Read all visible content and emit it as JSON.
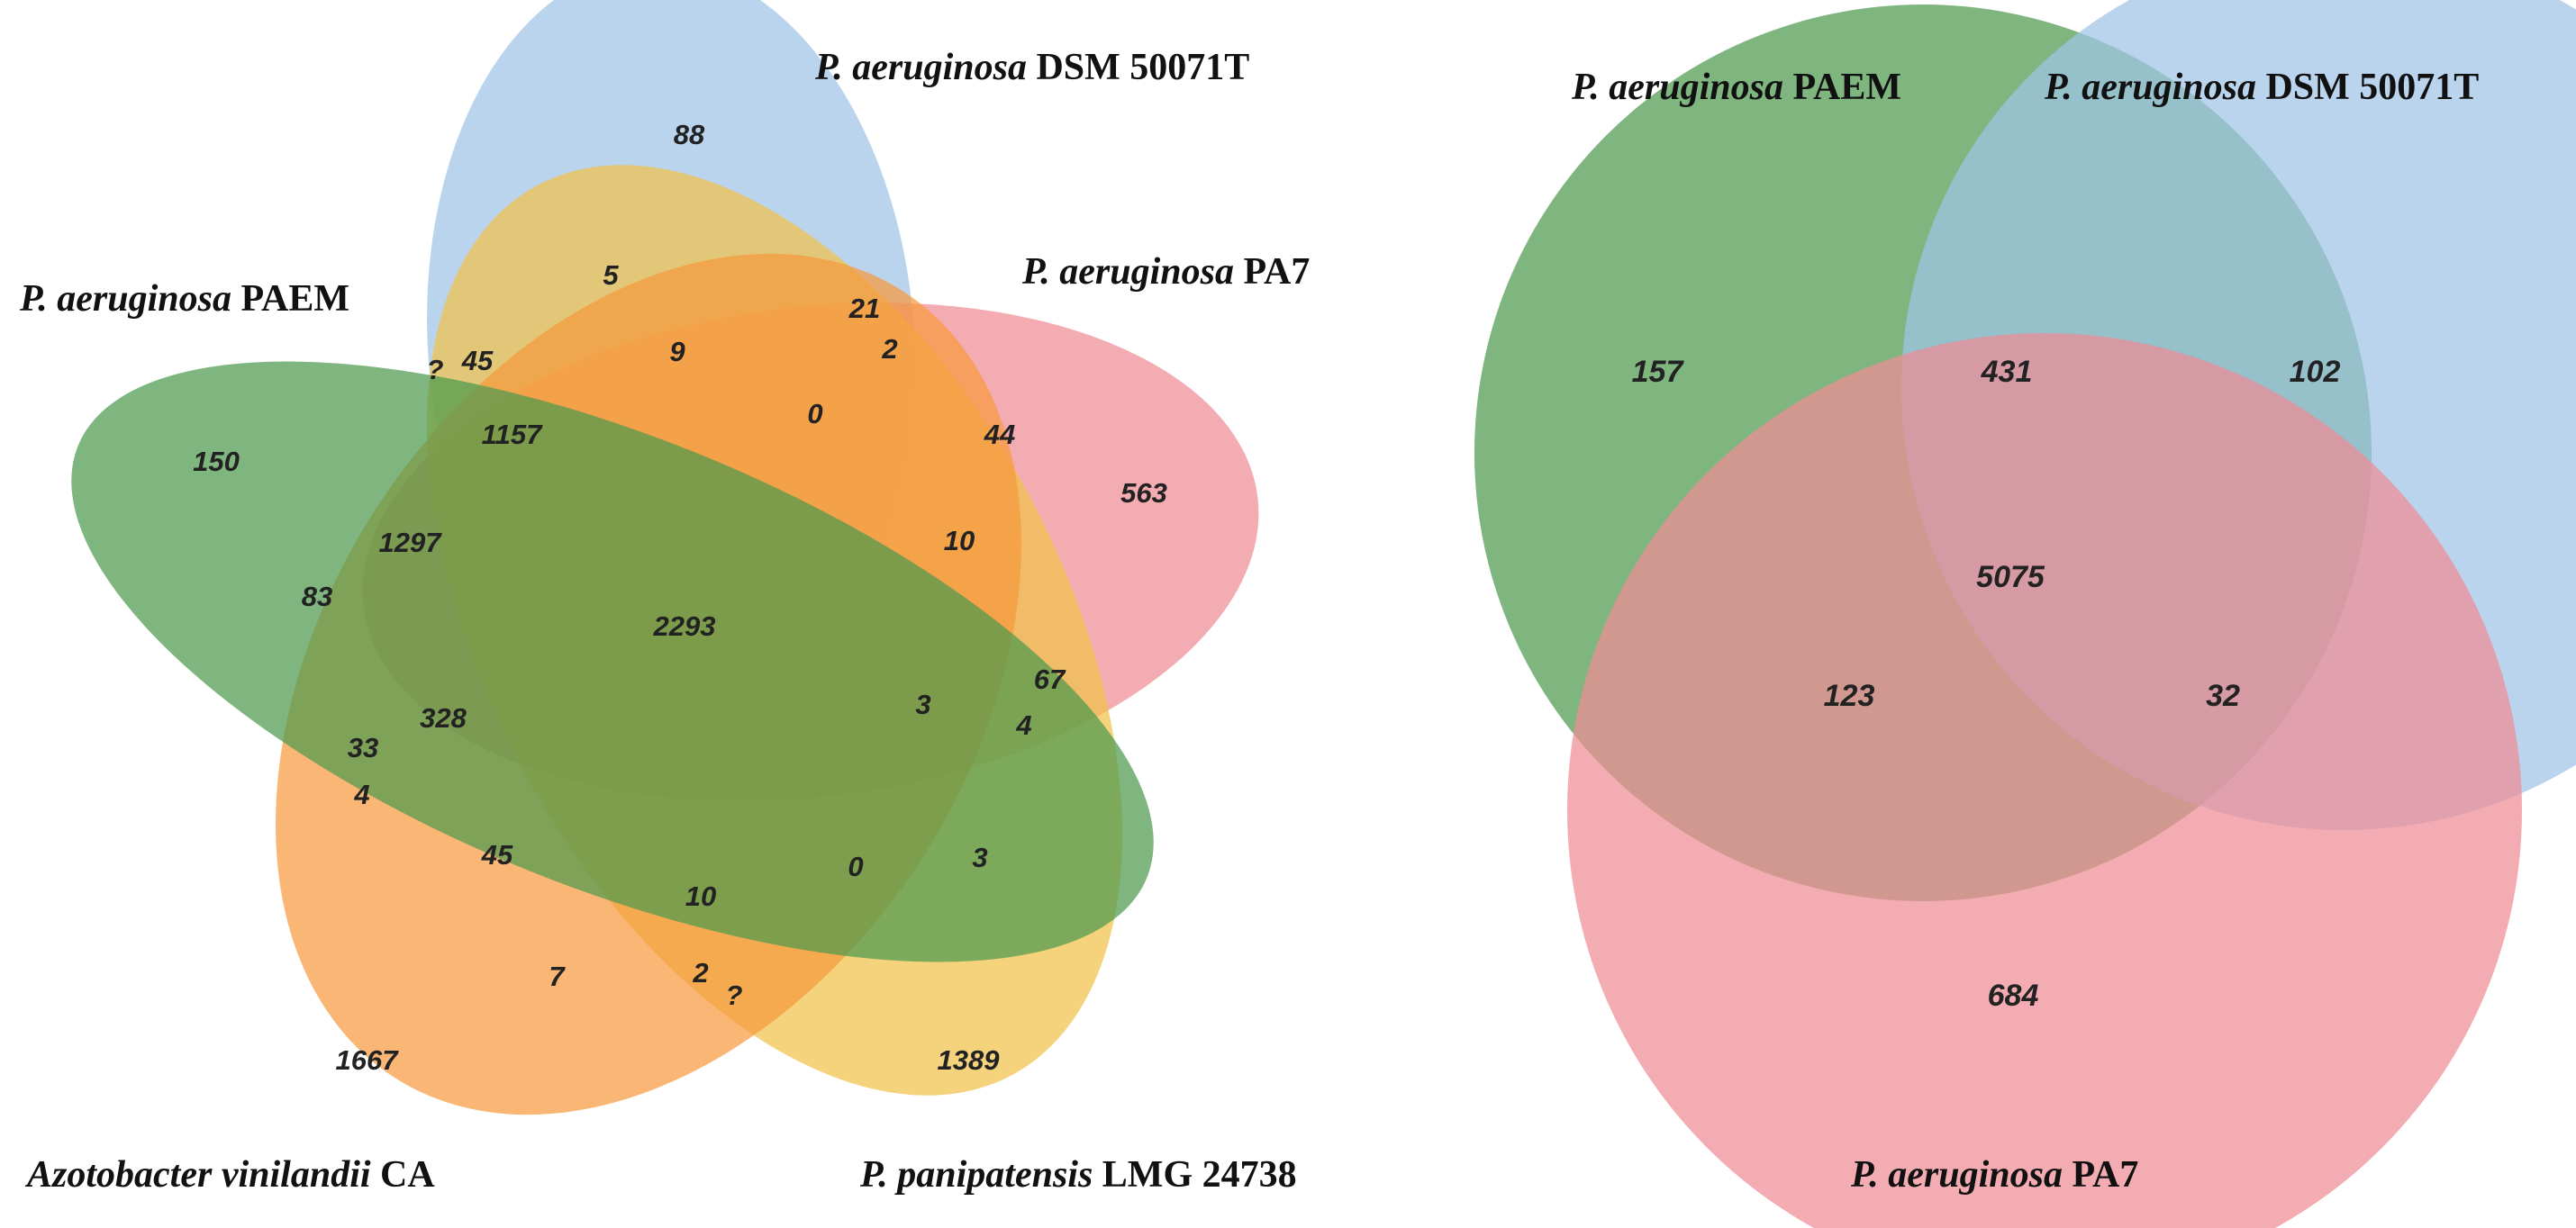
{
  "five_set_venn": {
    "sets": [
      {
        "key": "dsm",
        "species": "P. aeruginosa",
        "strain": "DSM 50071T",
        "color": "#9fc4e8"
      },
      {
        "key": "pa7",
        "species": "P. aeruginosa",
        "strain": "PA7",
        "color": "#f08c96"
      },
      {
        "key": "pan",
        "species": "P. panipatensis",
        "strain": "LMG 24738",
        "color": "#f0c24a"
      },
      {
        "key": "azo",
        "species": "Azotobacter vinilandii",
        "strain": "CA",
        "color": "#f79a3e"
      },
      {
        "key": "paem",
        "species": "P. aeruginosa",
        "strain": "PAEM",
        "color": "#4e9a4e"
      }
    ],
    "counts": {
      "r1": "88",
      "r2": "5",
      "r3": "21",
      "r4": "2",
      "r5": "9",
      "r6": "45",
      "r7": "?",
      "r8": "0",
      "r9": "44",
      "r10": "563",
      "r11": "1157",
      "r12": "150",
      "r13": "10",
      "r14": "1297",
      "r15": "83",
      "r16": "2293",
      "r17": "67",
      "r18": "3",
      "r19": "4",
      "r20": "328",
      "r21": "33",
      "r22": "4",
      "r23": "45",
      "r24": "10",
      "r25": "0",
      "r26": "3",
      "r27": "7",
      "r28": "2",
      "r29": "?",
      "r30": "1667",
      "r31": "1389"
    }
  },
  "three_set_venn": {
    "sets": [
      {
        "key": "paem",
        "species": "P. aeruginosa",
        "strain": "PAEM",
        "color": "#4e9a4e"
      },
      {
        "key": "dsm",
        "species": "P. aeruginosa",
        "strain": "DSM 50071T",
        "color": "#9fc4e8"
      },
      {
        "key": "pa7",
        "species": "P. aeruginosa",
        "strain": "PA7",
        "color": "#f08c96"
      }
    ],
    "counts": {
      "paem_only": "157",
      "paem_dsm": "431",
      "dsm_only": "102",
      "all_three": "5075",
      "paem_pa7": "123",
      "dsm_pa7": "32",
      "pa7_only": "684"
    }
  }
}
